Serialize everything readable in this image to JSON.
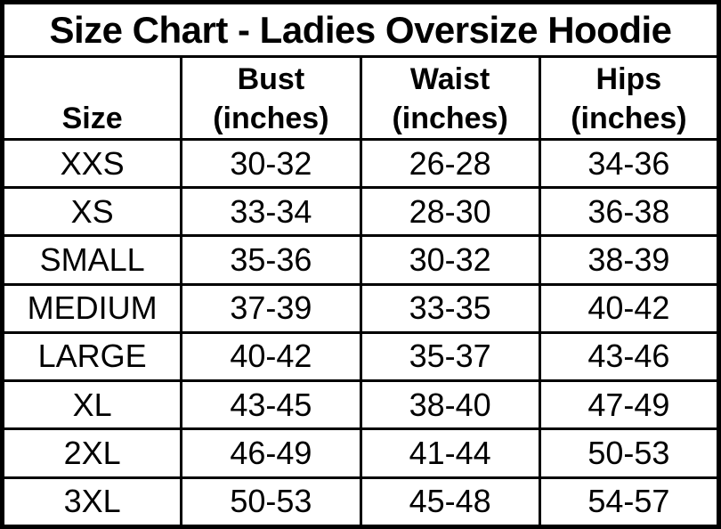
{
  "colors": {
    "background": "#ffffff",
    "border": "#000000",
    "text": "#000000"
  },
  "chart_data": {
    "type": "table",
    "title": "Size Chart - Ladies Oversize Hoodie",
    "columns": [
      "Size",
      "Bust\n(inches)",
      "Waist\n(inches)",
      "Hips\n(inches)"
    ],
    "rows": [
      [
        "XXS",
        "30-32",
        "26-28",
        "34-36"
      ],
      [
        "XS",
        "33-34",
        "28-30",
        "36-38"
      ],
      [
        "SMALL",
        "35-36",
        "30-32",
        "38-39"
      ],
      [
        "MEDIUM",
        "37-39",
        "33-35",
        "40-42"
      ],
      [
        "LARGE",
        "40-42",
        "35-37",
        "43-46"
      ],
      [
        "XL",
        "43-45",
        "38-40",
        "47-49"
      ],
      [
        "2XL",
        "46-49",
        "41-44",
        "50-53"
      ],
      [
        "3XL",
        "50-53",
        "45-48",
        "54-57"
      ]
    ]
  }
}
